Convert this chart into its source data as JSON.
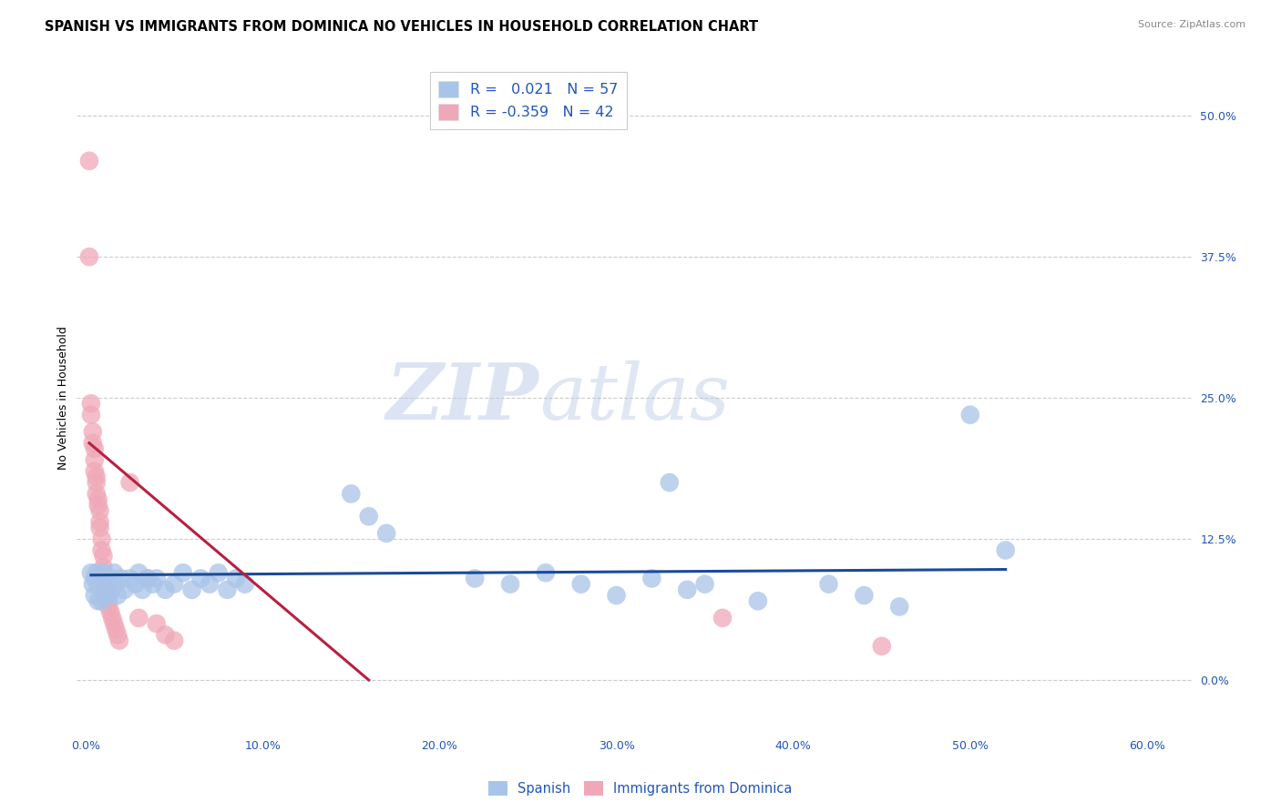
{
  "title": "SPANISH VS IMMIGRANTS FROM DOMINICA NO VEHICLES IN HOUSEHOLD CORRELATION CHART",
  "source": "Source: ZipAtlas.com",
  "xlabel_vals": [
    0.0,
    0.1,
    0.2,
    0.3,
    0.4,
    0.5,
    0.6
  ],
  "ylabel": "No Vehicles in Household",
  "ylabel_vals": [
    0.0,
    0.125,
    0.25,
    0.375,
    0.5
  ],
  "ylabel_labels": [
    "0.0%",
    "12.5%",
    "25.0%",
    "37.5%",
    "50.0%"
  ],
  "xlim": [
    -0.005,
    0.625
  ],
  "ylim": [
    -0.045,
    0.545
  ],
  "legend_r_blue": " 0.021",
  "legend_n_blue": "57",
  "legend_r_pink": "-0.359",
  "legend_n_pink": "42",
  "blue_color": "#a8c4e8",
  "pink_color": "#f0a8b8",
  "blue_line_color": "#1a4a9a",
  "pink_line_color": "#b82040",
  "watermark_zip": "ZIP",
  "watermark_atlas": "atlas",
  "grid_color": "#cccccc",
  "bg_color": "#ffffff",
  "title_fontsize": 10.5,
  "axis_label_fontsize": 9,
  "tick_fontsize": 9,
  "source_fontsize": 8,
  "blue_scatter": [
    [
      0.003,
      0.095
    ],
    [
      0.004,
      0.085
    ],
    [
      0.005,
      0.09
    ],
    [
      0.005,
      0.075
    ],
    [
      0.006,
      0.095
    ],
    [
      0.007,
      0.085
    ],
    [
      0.007,
      0.07
    ],
    [
      0.008,
      0.09
    ],
    [
      0.009,
      0.08
    ],
    [
      0.009,
      0.07
    ],
    [
      0.01,
      0.095
    ],
    [
      0.01,
      0.08
    ],
    [
      0.011,
      0.09
    ],
    [
      0.012,
      0.085
    ],
    [
      0.013,
      0.075
    ],
    [
      0.014,
      0.09
    ],
    [
      0.015,
      0.08
    ],
    [
      0.016,
      0.095
    ],
    [
      0.017,
      0.085
    ],
    [
      0.018,
      0.075
    ],
    [
      0.02,
      0.09
    ],
    [
      0.022,
      0.08
    ],
    [
      0.025,
      0.09
    ],
    [
      0.028,
      0.085
    ],
    [
      0.03,
      0.095
    ],
    [
      0.032,
      0.08
    ],
    [
      0.035,
      0.09
    ],
    [
      0.038,
      0.085
    ],
    [
      0.04,
      0.09
    ],
    [
      0.045,
      0.08
    ],
    [
      0.05,
      0.085
    ],
    [
      0.055,
      0.095
    ],
    [
      0.06,
      0.08
    ],
    [
      0.065,
      0.09
    ],
    [
      0.07,
      0.085
    ],
    [
      0.075,
      0.095
    ],
    [
      0.08,
      0.08
    ],
    [
      0.085,
      0.09
    ],
    [
      0.09,
      0.085
    ],
    [
      0.15,
      0.165
    ],
    [
      0.16,
      0.145
    ],
    [
      0.17,
      0.13
    ],
    [
      0.22,
      0.09
    ],
    [
      0.24,
      0.085
    ],
    [
      0.26,
      0.095
    ],
    [
      0.28,
      0.085
    ],
    [
      0.3,
      0.075
    ],
    [
      0.32,
      0.09
    ],
    [
      0.34,
      0.08
    ],
    [
      0.35,
      0.085
    ],
    [
      0.38,
      0.07
    ],
    [
      0.33,
      0.175
    ],
    [
      0.42,
      0.085
    ],
    [
      0.44,
      0.075
    ],
    [
      0.46,
      0.065
    ],
    [
      0.5,
      0.235
    ],
    [
      0.52,
      0.115
    ]
  ],
  "pink_scatter": [
    [
      0.002,
      0.46
    ],
    [
      0.002,
      0.375
    ],
    [
      0.003,
      0.245
    ],
    [
      0.003,
      0.235
    ],
    [
      0.004,
      0.22
    ],
    [
      0.004,
      0.21
    ],
    [
      0.005,
      0.205
    ],
    [
      0.005,
      0.195
    ],
    [
      0.005,
      0.185
    ],
    [
      0.006,
      0.18
    ],
    [
      0.006,
      0.175
    ],
    [
      0.006,
      0.165
    ],
    [
      0.007,
      0.16
    ],
    [
      0.007,
      0.155
    ],
    [
      0.008,
      0.15
    ],
    [
      0.008,
      0.14
    ],
    [
      0.008,
      0.135
    ],
    [
      0.009,
      0.125
    ],
    [
      0.009,
      0.115
    ],
    [
      0.01,
      0.11
    ],
    [
      0.01,
      0.1
    ],
    [
      0.01,
      0.095
    ],
    [
      0.011,
      0.09
    ],
    [
      0.011,
      0.085
    ],
    [
      0.012,
      0.08
    ],
    [
      0.012,
      0.075
    ],
    [
      0.013,
      0.07
    ],
    [
      0.013,
      0.065
    ],
    [
      0.014,
      0.06
    ],
    [
      0.015,
      0.055
    ],
    [
      0.016,
      0.05
    ],
    [
      0.017,
      0.045
    ],
    [
      0.018,
      0.04
    ],
    [
      0.019,
      0.035
    ],
    [
      0.025,
      0.175
    ],
    [
      0.03,
      0.055
    ],
    [
      0.035,
      0.09
    ],
    [
      0.04,
      0.05
    ],
    [
      0.045,
      0.04
    ],
    [
      0.05,
      0.035
    ],
    [
      0.36,
      0.055
    ],
    [
      0.45,
      0.03
    ]
  ],
  "blue_line_x": [
    0.003,
    0.52
  ],
  "blue_line_y": [
    0.093,
    0.098
  ],
  "pink_line_x": [
    0.002,
    0.16
  ],
  "pink_line_y": [
    0.21,
    0.0
  ]
}
